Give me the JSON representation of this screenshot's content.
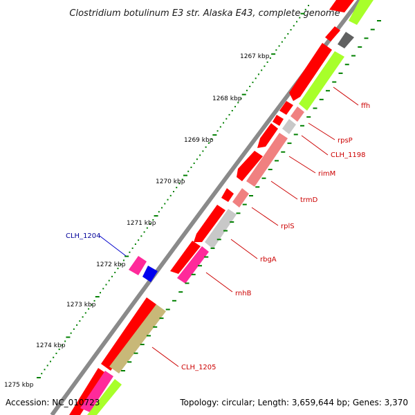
{
  "title": "Clostridium botulinum E3 str. Alaska E43, complete genome",
  "accession": "Accession: NC_010723",
  "summary": "Topology: circular; Length: 3,659,644 bp; Genes: 3,370",
  "ticks": [
    "1267 kbp",
    "1268 kbp",
    "1269 kbp",
    "1270 kbp",
    "1271 kbp",
    "1272 kbp",
    "1273 kbp",
    "1274 kbp",
    "1275 kbp"
  ],
  "genes": {
    "ffh": "ffh",
    "rpsP": "rpsP",
    "clh1198": "CLH_1198",
    "rimM": "rimM",
    "trmD": "trmD",
    "rplS": "rplS",
    "rbgA": "rbgA",
    "rnhB": "rnhB",
    "clh1205": "CLH_1205",
    "clh1204": "CLH_1204"
  },
  "colors": {
    "gene_red": "#ff0000",
    "rna_salmon": "#f08080",
    "gray": "#c8c8c8",
    "dark_gray": "#606060",
    "lime": "#a8ff2a",
    "olive": "#c8b878",
    "magenta": "#ff2a9a",
    "blue": "#0000ee",
    "tick_green": "#008000",
    "label_red": "#cc0000",
    "label_blue": "#000099"
  }
}
